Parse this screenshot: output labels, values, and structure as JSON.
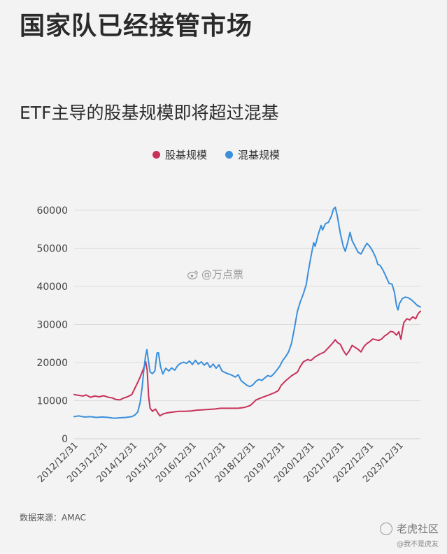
{
  "headline": "国家队已经接管市场",
  "source_note": "数据来源：AMAC",
  "watermark": "@万点票",
  "corner": {
    "logo_text": "老虎社区",
    "sub_text": "@我不是虎友"
  },
  "chart_data": {
    "type": "line",
    "title": "ETF主导的股基规模即将超过混基",
    "xlabel": "",
    "ylabel": "",
    "ylim": [
      0,
      62000
    ],
    "yticks": [
      0,
      10000,
      20000,
      30000,
      40000,
      50000,
      60000
    ],
    "grid": true,
    "legend_placement": "top-center",
    "x_tick_labels": [
      "2012/12/31",
      "2013/12/31",
      "2014/12/31",
      "2015/12/31",
      "2016/12/31",
      "2017/12/31",
      "2018/12/31",
      "2019/12/31",
      "2020/12/31",
      "2021/12/31",
      "2022/12/31",
      "2023/12/31"
    ],
    "xrange": [
      2012.95,
      2024.66
    ],
    "series": [
      {
        "name": "股基规模",
        "color": "#c8315a",
        "points": [
          [
            2012.95,
            11600
          ],
          [
            2013.1,
            11400
          ],
          [
            2013.25,
            11200
          ],
          [
            2013.35,
            11500
          ],
          [
            2013.5,
            10900
          ],
          [
            2013.65,
            11200
          ],
          [
            2013.8,
            11000
          ],
          [
            2013.95,
            11300
          ],
          [
            2014.1,
            10900
          ],
          [
            2014.25,
            10700
          ],
          [
            2014.35,
            10300
          ],
          [
            2014.5,
            10200
          ],
          [
            2014.6,
            10600
          ],
          [
            2014.75,
            11000
          ],
          [
            2014.9,
            11600
          ],
          [
            2015.0,
            13200
          ],
          [
            2015.1,
            14800
          ],
          [
            2015.2,
            16500
          ],
          [
            2015.3,
            18500
          ],
          [
            2015.37,
            20200
          ],
          [
            2015.42,
            18000
          ],
          [
            2015.47,
            11000
          ],
          [
            2015.52,
            8000
          ],
          [
            2015.6,
            7200
          ],
          [
            2015.7,
            7800
          ],
          [
            2015.78,
            6800
          ],
          [
            2015.85,
            6000
          ],
          [
            2015.95,
            6500
          ],
          [
            2016.1,
            6800
          ],
          [
            2016.3,
            7000
          ],
          [
            2016.5,
            7200
          ],
          [
            2016.7,
            7200
          ],
          [
            2016.9,
            7300
          ],
          [
            2017.1,
            7500
          ],
          [
            2017.3,
            7600
          ],
          [
            2017.5,
            7700
          ],
          [
            2017.7,
            7800
          ],
          [
            2017.9,
            8000
          ],
          [
            2018.1,
            8000
          ],
          [
            2018.3,
            8000
          ],
          [
            2018.5,
            8000
          ],
          [
            2018.7,
            8200
          ],
          [
            2018.9,
            8700
          ],
          [
            2019.0,
            9400
          ],
          [
            2019.1,
            10200
          ],
          [
            2019.3,
            10800
          ],
          [
            2019.5,
            11400
          ],
          [
            2019.7,
            12000
          ],
          [
            2019.85,
            12600
          ],
          [
            2019.95,
            14000
          ],
          [
            2020.1,
            15200
          ],
          [
            2020.3,
            16500
          ],
          [
            2020.5,
            17500
          ],
          [
            2020.6,
            19000
          ],
          [
            2020.7,
            20200
          ],
          [
            2020.85,
            20800
          ],
          [
            2020.95,
            20500
          ],
          [
            2021.1,
            21500
          ],
          [
            2021.25,
            22200
          ],
          [
            2021.4,
            22700
          ],
          [
            2021.5,
            23500
          ],
          [
            2021.6,
            24300
          ],
          [
            2021.7,
            25200
          ],
          [
            2021.78,
            26000
          ],
          [
            2021.85,
            25300
          ],
          [
            2021.95,
            24800
          ],
          [
            2022.05,
            23200
          ],
          [
            2022.15,
            22000
          ],
          [
            2022.25,
            23000
          ],
          [
            2022.35,
            24500
          ],
          [
            2022.45,
            24000
          ],
          [
            2022.55,
            23500
          ],
          [
            2022.65,
            22800
          ],
          [
            2022.75,
            24200
          ],
          [
            2022.85,
            25000
          ],
          [
            2022.95,
            25500
          ],
          [
            2023.05,
            26200
          ],
          [
            2023.15,
            26000
          ],
          [
            2023.25,
            25800
          ],
          [
            2023.35,
            26200
          ],
          [
            2023.45,
            27000
          ],
          [
            2023.55,
            27500
          ],
          [
            2023.65,
            28200
          ],
          [
            2023.75,
            28000
          ],
          [
            2023.85,
            27200
          ],
          [
            2023.93,
            28100
          ],
          [
            2024.0,
            26100
          ],
          [
            2024.05,
            28500
          ],
          [
            2024.1,
            30500
          ],
          [
            2024.2,
            31500
          ],
          [
            2024.3,
            31200
          ],
          [
            2024.4,
            32000
          ],
          [
            2024.5,
            31500
          ],
          [
            2024.58,
            32800
          ],
          [
            2024.66,
            33500
          ]
        ]
      },
      {
        "name": "混基规模",
        "color": "#3a8fdc",
        "points": [
          [
            2012.95,
            5800
          ],
          [
            2013.1,
            6000
          ],
          [
            2013.3,
            5700
          ],
          [
            2013.5,
            5800
          ],
          [
            2013.7,
            5600
          ],
          [
            2013.9,
            5700
          ],
          [
            2014.1,
            5600
          ],
          [
            2014.3,
            5400
          ],
          [
            2014.5,
            5500
          ],
          [
            2014.7,
            5600
          ],
          [
            2014.9,
            5800
          ],
          [
            2015.0,
            6200
          ],
          [
            2015.1,
            7000
          ],
          [
            2015.18,
            9500
          ],
          [
            2015.25,
            13500
          ],
          [
            2015.3,
            17500
          ],
          [
            2015.36,
            21500
          ],
          [
            2015.41,
            23400
          ],
          [
            2015.46,
            20500
          ],
          [
            2015.52,
            17500
          ],
          [
            2015.6,
            17100
          ],
          [
            2015.68,
            17800
          ],
          [
            2015.75,
            22500
          ],
          [
            2015.8,
            22600
          ],
          [
            2015.87,
            19000
          ],
          [
            2015.95,
            17000
          ],
          [
            2016.05,
            18500
          ],
          [
            2016.15,
            17800
          ],
          [
            2016.25,
            18600
          ],
          [
            2016.35,
            18000
          ],
          [
            2016.45,
            19200
          ],
          [
            2016.55,
            19800
          ],
          [
            2016.65,
            20100
          ],
          [
            2016.75,
            19800
          ],
          [
            2016.85,
            20400
          ],
          [
            2016.95,
            19500
          ],
          [
            2017.05,
            20600
          ],
          [
            2017.15,
            19600
          ],
          [
            2017.25,
            20200
          ],
          [
            2017.35,
            19300
          ],
          [
            2017.45,
            20000
          ],
          [
            2017.55,
            18700
          ],
          [
            2017.65,
            19600
          ],
          [
            2017.75,
            18500
          ],
          [
            2017.85,
            19400
          ],
          [
            2017.95,
            17800
          ],
          [
            2018.1,
            17200
          ],
          [
            2018.25,
            16800
          ],
          [
            2018.4,
            16200
          ],
          [
            2018.5,
            16800
          ],
          [
            2018.6,
            15200
          ],
          [
            2018.7,
            14600
          ],
          [
            2018.8,
            14000
          ],
          [
            2018.9,
            13700
          ],
          [
            2019.0,
            14200
          ],
          [
            2019.1,
            15100
          ],
          [
            2019.2,
            15600
          ],
          [
            2019.3,
            15300
          ],
          [
            2019.4,
            16000
          ],
          [
            2019.5,
            16600
          ],
          [
            2019.6,
            16300
          ],
          [
            2019.7,
            17000
          ],
          [
            2019.8,
            18000
          ],
          [
            2019.9,
            19000
          ],
          [
            2020.0,
            20500
          ],
          [
            2020.1,
            21500
          ],
          [
            2020.2,
            22800
          ],
          [
            2020.3,
            25000
          ],
          [
            2020.4,
            29000
          ],
          [
            2020.5,
            33500
          ],
          [
            2020.6,
            36000
          ],
          [
            2020.7,
            38000
          ],
          [
            2020.8,
            40500
          ],
          [
            2020.87,
            44000
          ],
          [
            2020.95,
            47500
          ],
          [
            2021.05,
            51500
          ],
          [
            2021.1,
            50500
          ],
          [
            2021.2,
            53500
          ],
          [
            2021.3,
            56000
          ],
          [
            2021.35,
            54800
          ],
          [
            2021.45,
            56500
          ],
          [
            2021.55,
            56800
          ],
          [
            2021.65,
            58500
          ],
          [
            2021.72,
            60300
          ],
          [
            2021.78,
            60800
          ],
          [
            2021.85,
            58500
          ],
          [
            2021.95,
            54000
          ],
          [
            2022.05,
            50500
          ],
          [
            2022.12,
            49200
          ],
          [
            2022.2,
            51500
          ],
          [
            2022.28,
            54200
          ],
          [
            2022.35,
            52000
          ],
          [
            2022.45,
            50500
          ],
          [
            2022.55,
            49000
          ],
          [
            2022.65,
            48500
          ],
          [
            2022.75,
            50000
          ],
          [
            2022.85,
            51300
          ],
          [
            2022.95,
            50500
          ],
          [
            2023.05,
            49200
          ],
          [
            2023.15,
            47500
          ],
          [
            2023.22,
            45800
          ],
          [
            2023.3,
            45500
          ],
          [
            2023.4,
            44200
          ],
          [
            2023.5,
            42500
          ],
          [
            2023.6,
            40800
          ],
          [
            2023.7,
            40600
          ],
          [
            2023.78,
            38500
          ],
          [
            2023.85,
            35000
          ],
          [
            2023.9,
            33800
          ],
          [
            2023.95,
            35500
          ],
          [
            2024.05,
            36800
          ],
          [
            2024.15,
            37200
          ],
          [
            2024.25,
            37000
          ],
          [
            2024.35,
            36500
          ],
          [
            2024.45,
            35800
          ],
          [
            2024.55,
            35000
          ],
          [
            2024.66,
            34600
          ]
        ]
      }
    ]
  }
}
